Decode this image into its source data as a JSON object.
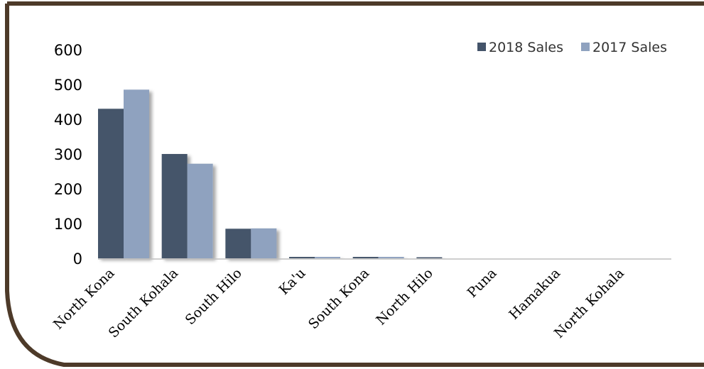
{
  "chart_data": {
    "type": "bar",
    "categories": [
      "North Kona",
      "South Kohala",
      "South Hilo",
      "Ka'u",
      "South Kona",
      "North Hilo",
      "Puna",
      "Hamakua",
      "North Kohala"
    ],
    "series": [
      {
        "name": "2018 Sales",
        "color": "#44546a",
        "values": [
          430,
          300,
          85,
          4,
          4,
          3,
          0,
          0,
          0
        ]
      },
      {
        "name": "2017 Sales",
        "color": "#8fa2bf",
        "values": [
          485,
          272,
          86,
          4,
          4,
          0,
          0,
          0,
          0
        ]
      }
    ],
    "yticks": [
      "0",
      "100",
      "200",
      "300",
      "400",
      "500",
      "600"
    ],
    "ylim": [
      0,
      600
    ],
    "grid": false,
    "legend_position": "top-right",
    "frame_color": "#4d3a29"
  }
}
